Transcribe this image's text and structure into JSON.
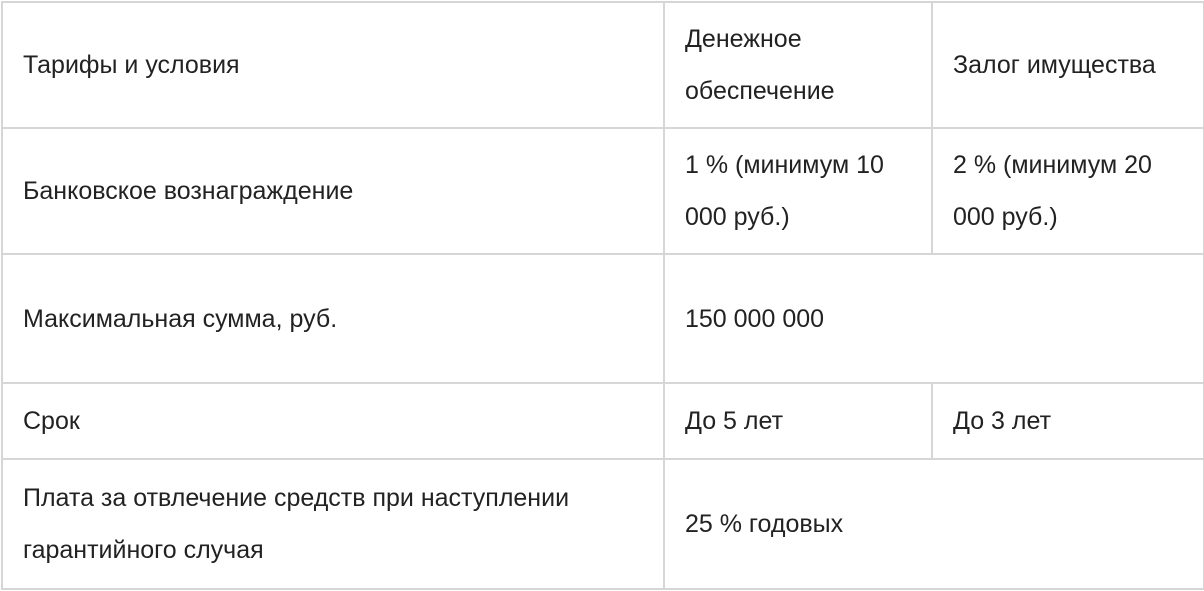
{
  "table": {
    "header": [
      "Тарифы и условия",
      "Денежное обеспечение",
      "Залог имущества"
    ],
    "rows": [
      {
        "label": "Банковское вознаграждение",
        "cash": "1 % (минимум 10 000 руб.)",
        "collateral": "2 % (минимум 20 000 руб.)"
      },
      {
        "label": "Максимальная сумма, руб.",
        "both": "150 000 000"
      },
      {
        "label": "Срок",
        "cash": "До 5 лет",
        "collateral": "До 3 лет"
      },
      {
        "label": "Плата за отвлечение средств при наступлении гарантийного случая",
        "both": "25 % годовых"
      }
    ]
  }
}
